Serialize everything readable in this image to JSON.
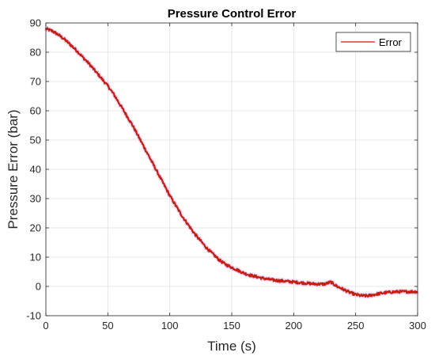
{
  "chart_data": {
    "type": "line",
    "title": "Pressure Control Error",
    "xlabel": "Time (s)",
    "ylabel": "Pressure Error (bar)",
    "xlim": [
      0,
      300
    ],
    "ylim": [
      -10,
      90
    ],
    "xticks": [
      0,
      50,
      100,
      150,
      200,
      250,
      300
    ],
    "yticks": [
      -10,
      0,
      10,
      20,
      30,
      40,
      50,
      60,
      70,
      80,
      90
    ],
    "grid": true,
    "legend_position": "top-right",
    "series": [
      {
        "name": "Error",
        "color": "#e3120b",
        "x": [
          0,
          5,
          10,
          15,
          20,
          25,
          30,
          35,
          40,
          45,
          50,
          55,
          60,
          65,
          70,
          75,
          80,
          85,
          90,
          95,
          100,
          105,
          110,
          115,
          120,
          125,
          130,
          135,
          140,
          145,
          150,
          155,
          160,
          165,
          170,
          175,
          180,
          185,
          190,
          195,
          200,
          205,
          210,
          215,
          220,
          225,
          230,
          235,
          240,
          245,
          250,
          255,
          260,
          265,
          270,
          275,
          280,
          285,
          290,
          295,
          300
        ],
        "y": [
          88,
          87.3,
          86,
          84.4,
          82.5,
          80.5,
          78.2,
          76,
          73.5,
          71,
          68.5,
          65.5,
          62,
          58.5,
          55,
          51,
          47,
          43,
          39,
          35,
          31,
          27.5,
          24,
          21,
          18,
          15.5,
          13,
          11,
          9,
          7.5,
          6.5,
          5.5,
          4.5,
          3.8,
          3.3,
          2.8,
          2.4,
          2.1,
          1.9,
          1.7,
          1.5,
          1.3,
          1.1,
          0.9,
          0.8,
          0.8,
          1.5,
          0,
          -1,
          -2,
          -2.8,
          -3.2,
          -3.2,
          -2.8,
          -2.4,
          -2.1,
          -1.9,
          -1.8,
          -1.8,
          -1.8,
          -1.8
        ]
      }
    ]
  }
}
